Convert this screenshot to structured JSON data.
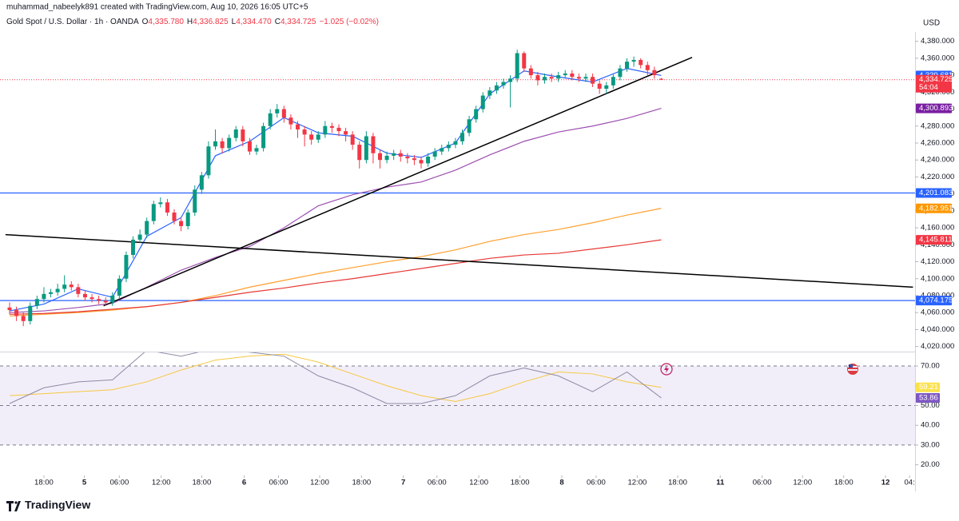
{
  "chart_data": {
    "type": "candlestick",
    "attribution": "muhammad_nabeelyk891 created with TradingView.com, Aug 10, 2026 16:05 UTC+5",
    "title": "Gold Spot / U.S. Dollar · 1h · OANDA",
    "ohlc_labels": [
      [
        "O",
        "4,335.780"
      ],
      [
        "H",
        "4,336.825"
      ],
      [
        "L",
        "4,334.470"
      ],
      [
        "C",
        "4,334.725"
      ]
    ],
    "change": "−1.025 (−0.02%)",
    "currency": "USD",
    "logo": "TradingView",
    "up_color": "#089981",
    "down_color": "#f23645",
    "xlim": [
      -1.4,
      132
    ],
    "ylim": [
      4014,
      4391
    ],
    "open": [
      4066,
      4063,
      4056,
      4050,
      4068,
      4076,
      4082,
      4084,
      4088,
      4093,
      4090,
      4082,
      4078,
      4076,
      4074,
      4072,
      4080,
      4100,
      4128,
      4146,
      4152,
      4168,
      4188,
      4190,
      4178,
      4168,
      4162,
      4178,
      4205,
      4222,
      4256,
      4262,
      4254,
      4266,
      4276,
      4262,
      4250,
      4254,
      4280,
      4295,
      4300,
      4290,
      4282,
      4276,
      4270,
      4264,
      4270,
      4280,
      4278,
      4274,
      4270,
      4258,
      4240,
      4268,
      4248,
      4240,
      4245,
      4248,
      4244,
      4242,
      4240,
      4236,
      4244,
      4250,
      4254,
      4258,
      4262,
      4272,
      4288,
      4300,
      4316,
      4322,
      4328,
      4332,
      4336,
      4366,
      4348,
      4340,
      4334,
      4338,
      4336,
      4340,
      4342,
      4338,
      4336,
      4338,
      4330,
      4324,
      4328,
      4338,
      4348,
      4356,
      4358,
      4352,
      4346,
      4335.78
    ],
    "high": [
      4072,
      4067,
      4060,
      4072,
      4080,
      4090,
      4088,
      4094,
      4104,
      4097,
      4094,
      4086,
      4082,
      4080,
      4078,
      4084,
      4104,
      4132,
      4150,
      4158,
      4172,
      4192,
      4196,
      4194,
      4182,
      4172,
      4182,
      4210,
      4226,
      4262,
      4276,
      4266,
      4270,
      4280,
      4280,
      4266,
      4258,
      4284,
      4300,
      4306,
      4304,
      4294,
      4286,
      4280,
      4274,
      4274,
      4286,
      4284,
      4282,
      4278,
      4274,
      4262,
      4274,
      4272,
      4252,
      4250,
      4252,
      4252,
      4248,
      4246,
      4244,
      4248,
      4254,
      4258,
      4262,
      4266,
      4276,
      4292,
      4304,
      4320,
      4326,
      4332,
      4336,
      4340,
      4370,
      4368,
      4352,
      4344,
      4342,
      4342,
      4344,
      4346,
      4346,
      4342,
      4342,
      4342,
      4334,
      4332,
      4342,
      4352,
      4360,
      4362,
      4360,
      4356,
      4350,
      4336.825
    ],
    "low": [
      4058,
      4050,
      4044,
      4046,
      4064,
      4072,
      4078,
      4080,
      4084,
      4086,
      4078,
      4074,
      4072,
      4070,
      4068,
      4068,
      4076,
      4096,
      4124,
      4142,
      4148,
      4164,
      4184,
      4174,
      4164,
      4156,
      4158,
      4174,
      4200,
      4218,
      4252,
      4248,
      4250,
      4262,
      4256,
      4246,
      4246,
      4250,
      4276,
      4290,
      4284,
      4276,
      4266,
      4256,
      4258,
      4260,
      4266,
      4272,
      4268,
      4262,
      4252,
      4230,
      4236,
      4236,
      4230,
      4236,
      4240,
      4238,
      4236,
      4234,
      4230,
      4232,
      4240,
      4246,
      4250,
      4254,
      4258,
      4268,
      4284,
      4296,
      4312,
      4318,
      4324,
      4302,
      4332,
      4344,
      4336,
      4328,
      4330,
      4332,
      4332,
      4336,
      4334,
      4332,
      4332,
      4326,
      4318,
      4318,
      4324,
      4334,
      4344,
      4350,
      4348,
      4340,
      4336,
      4334.47
    ],
    "close": [
      4063,
      4056,
      4050,
      4068,
      4076,
      4082,
      4084,
      4088,
      4093,
      4090,
      4082,
      4078,
      4076,
      4074,
      4072,
      4080,
      4100,
      4128,
      4146,
      4152,
      4168,
      4188,
      4190,
      4178,
      4168,
      4162,
      4178,
      4205,
      4222,
      4256,
      4262,
      4254,
      4266,
      4276,
      4262,
      4250,
      4254,
      4280,
      4295,
      4300,
      4290,
      4282,
      4276,
      4270,
      4264,
      4270,
      4280,
      4278,
      4274,
      4270,
      4258,
      4240,
      4268,
      4248,
      4240,
      4245,
      4248,
      4244,
      4242,
      4240,
      4236,
      4244,
      4250,
      4254,
      4258,
      4262,
      4272,
      4288,
      4300,
      4316,
      4322,
      4328,
      4332,
      4336,
      4366,
      4348,
      4340,
      4334,
      4338,
      4336,
      4340,
      4342,
      4338,
      4336,
      4338,
      4330,
      4324,
      4328,
      4338,
      4348,
      4356,
      4358,
      4352,
      4346,
      4340,
      4334.725
    ],
    "ma_x": [
      0,
      5,
      10,
      15,
      20,
      25,
      30,
      35,
      40,
      45,
      50,
      55,
      60,
      65,
      70,
      75,
      80,
      85,
      90,
      95
    ],
    "moving_averages": [
      {
        "color": "#2962ff",
        "values": [
          4062,
          4070,
          4088,
          4078,
          4150,
          4172,
          4245,
          4262,
          4290,
          4272,
          4268,
          4248,
          4243,
          4260,
          4318,
          4345,
          4338,
          4332,
          4348,
          4339.681
        ]
      },
      {
        "color": "#9c4fb0",
        "values": [
          4060,
          4062,
          4066,
          4071,
          4090,
          4110,
          4125,
          4138,
          4160,
          4186,
          4199,
          4208,
          4214,
          4228,
          4246,
          4262,
          4273,
          4280,
          4289,
          4300.893
        ]
      },
      {
        "color": "#ff9f2e",
        "values": [
          4056,
          4058,
          4060,
          4063,
          4067,
          4072,
          4080,
          4090,
          4098,
          4106,
          4113,
          4120,
          4126,
          4134,
          4144,
          4152,
          4158,
          4166,
          4175,
          4182.951
        ]
      },
      {
        "color": "#e53935",
        "values": [
          4058,
          4059,
          4061,
          4064,
          4067,
          4072,
          4078,
          4084,
          4089,
          4095,
          4100,
          4106,
          4112,
          4118,
          4124,
          4128,
          4130,
          4135,
          4140,
          4145.811
        ]
      }
    ],
    "trendlines": [
      {
        "color": "#000000",
        "x": [
          13.7,
          99.5
        ],
        "y": [
          4068,
          4361
        ]
      },
      {
        "color": "#000000",
        "x": [
          -0.6,
          131.7
        ],
        "y": [
          4152,
          4090
        ]
      }
    ],
    "levels": [
      {
        "value": 4201.083,
        "color": "#2962ff"
      },
      {
        "value": 4074.175,
        "color": "#2962ff"
      }
    ],
    "yticks": [
      {
        "value": 4020,
        "label": "4,020.000"
      },
      {
        "value": 4040,
        "label": "4,040.000"
      },
      {
        "value": 4060,
        "label": "4,060.000"
      },
      {
        "value": 4080,
        "label": "4,080.000"
      },
      {
        "value": 4100,
        "label": "4,100.000"
      },
      {
        "value": 4120,
        "label": "4,120.000"
      },
      {
        "value": 4140,
        "label": "4,140.000"
      },
      {
        "value": 4160,
        "label": "4,160.000"
      },
      {
        "value": 4180,
        "label": "4,180.000"
      },
      {
        "value": 4200,
        "label": "4,200.000"
      },
      {
        "value": 4220,
        "label": "4,220.000"
      },
      {
        "value": 4240,
        "label": "4,240.000"
      },
      {
        "value": 4260,
        "label": "4,260.000"
      },
      {
        "value": 4280,
        "label": "4,280.000"
      },
      {
        "value": 4300,
        "label": "4,300.000"
      },
      {
        "value": 4320,
        "label": "4,320.000"
      },
      {
        "value": 4340,
        "label": "4,340.000"
      },
      {
        "value": 4360,
        "label": "4,360.000"
      },
      {
        "value": 4380,
        "label": "4,380.000"
      }
    ],
    "price_labels": [
      {
        "value": 4339.681,
        "label": "4,339.681",
        "color": "#2962ff"
      },
      {
        "value": 4334.725,
        "label": "4,334.725",
        "color": "#f23645",
        "countdown": "54:04"
      },
      {
        "value": 4300.893,
        "label": "4,300.893",
        "color": "#7b1fa2"
      },
      {
        "value": 4201.083,
        "label": "4,201.083",
        "color": "#2962ff"
      },
      {
        "value": 4182.951,
        "label": "4,182.951",
        "color": "#ff9800"
      },
      {
        "value": 4145.811,
        "label": "4,145.811",
        "color": "#f23645"
      },
      {
        "value": 4074.175,
        "label": "4,074.175",
        "color": "#2962ff"
      }
    ],
    "xticks": [
      {
        "value": 5,
        "label": "18:00"
      },
      {
        "value": 10.9,
        "label": "5"
      },
      {
        "value": 16,
        "label": "06:00"
      },
      {
        "value": 22.1,
        "label": "12:00"
      },
      {
        "value": 28,
        "label": "18:00"
      },
      {
        "value": 34.2,
        "label": "6"
      },
      {
        "value": 39.2,
        "label": "06:00"
      },
      {
        "value": 45.2,
        "label": "12:00"
      },
      {
        "value": 51.3,
        "label": "18:00"
      },
      {
        "value": 57.4,
        "label": "7"
      },
      {
        "value": 62.3,
        "label": "06:00"
      },
      {
        "value": 68.4,
        "label": "12:00"
      },
      {
        "value": 74.4,
        "label": "18:00"
      },
      {
        "value": 80.5,
        "label": "8"
      },
      {
        "value": 85.5,
        "label": "06:00"
      },
      {
        "value": 91.5,
        "label": "12:00"
      },
      {
        "value": 97.4,
        "label": "18:00"
      },
      {
        "value": 103.6,
        "label": "11"
      },
      {
        "value": 109.7,
        "label": "06:00"
      },
      {
        "value": 115.6,
        "label": "12:00"
      },
      {
        "value": 121.6,
        "label": "18:00"
      },
      {
        "value": 127.7,
        "label": "12"
      },
      {
        "value": 131.2,
        "label": "04:"
      }
    ],
    "rsi": {
      "ylim": [
        14.6,
        77.3
      ],
      "band": [
        30,
        70
      ],
      "dashed": [
        70,
        50,
        30
      ],
      "yticks": [
        {
          "value": 70,
          "label": "70.00"
        },
        {
          "value": 60,
          "label": "60.00"
        },
        {
          "value": 50,
          "label": "50.00"
        },
        {
          "value": 40,
          "label": "40.00"
        },
        {
          "value": 30,
          "label": "30.00"
        },
        {
          "value": 20,
          "label": "20.00"
        }
      ],
      "series": [
        {
          "color": "#8e8aa6",
          "values": [
            51,
            59,
            62,
            63,
            78,
            75,
            79,
            77,
            75,
            65,
            59,
            51,
            51,
            55,
            65,
            69,
            65,
            57,
            67,
            53.86
          ],
          "label": "53.86",
          "badge": "#7e57c2"
        },
        {
          "color": "#f5c842",
          "values": [
            55,
            56,
            57,
            58,
            62,
            68,
            73,
            75,
            76,
            72,
            66,
            60,
            55,
            52,
            56,
            62,
            67,
            66,
            62,
            59.21
          ],
          "label": "59.21",
          "badge": "#fbe24a"
        }
      ]
    }
  }
}
